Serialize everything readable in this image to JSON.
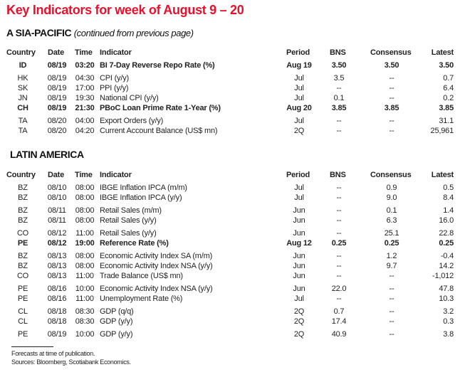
{
  "title": "Key Indicators for week of August 9 – 20",
  "columns": {
    "country": "Country",
    "date": "Date",
    "time": "Time",
    "indicator": "Indicator",
    "period": "Period",
    "bns": "BNS",
    "consensus": "Consensus",
    "latest": "Latest"
  },
  "asia": {
    "heading": "A SIA-PACIFIC",
    "subheading": "(continued from previous page)",
    "groups": [
      [
        {
          "country": "ID",
          "date": "08/19",
          "time": "03:20",
          "indicator": "BI 7-Day Reverse Repo Rate (%)",
          "period": "Aug 19",
          "bns": "3.50",
          "consensus": "3.50",
          "latest": "3.50",
          "bold": true
        }
      ],
      [
        {
          "country": "HK",
          "date": "08/19",
          "time": "04:30",
          "indicator": "CPI (y/y)",
          "period": "Jul",
          "bns": "3.5",
          "consensus": "--",
          "latest": "0.7"
        },
        {
          "country": "SK",
          "date": "08/19",
          "time": "17:00",
          "indicator": "PPI (y/y)",
          "period": "Jul",
          "bns": "--",
          "consensus": "--",
          "latest": "6.4"
        },
        {
          "country": "JN",
          "date": "08/19",
          "time": "19:30",
          "indicator": "National CPI (y/y)",
          "period": "Jul",
          "bns": "0.1",
          "consensus": "--",
          "latest": "0.2"
        },
        {
          "country": "CH",
          "date": "08/19",
          "time": "21:30",
          "indicator": "PBoC Loan Prime Rate 1-Year (%)",
          "period": "Aug 20",
          "bns": "3.85",
          "consensus": "3.85",
          "latest": "3.85",
          "bold": true
        }
      ],
      [
        {
          "country": "TA",
          "date": "08/20",
          "time": "04:00",
          "indicator": "Export Orders (y/y)",
          "period": "Jul",
          "bns": "--",
          "consensus": "--",
          "latest": "31.1"
        },
        {
          "country": "TA",
          "date": "08/20",
          "time": "04:20",
          "indicator": "Current Account Balance (US$ mn)",
          "period": "2Q",
          "bns": "--",
          "consensus": "--",
          "latest": "25,961"
        }
      ]
    ]
  },
  "latam": {
    "heading": "LATIN AMERICA",
    "groups": [
      [
        {
          "country": "BZ",
          "date": "08/10",
          "time": "08:00",
          "indicator": "IBGE Inflation IPCA (m/m)",
          "period": "Jul",
          "bns": "--",
          "consensus": "0.9",
          "latest": "0.5"
        },
        {
          "country": "BZ",
          "date": "08/10",
          "time": "08:00",
          "indicator": "IBGE Inflation IPCA (y/y)",
          "period": "Jul",
          "bns": "--",
          "consensus": "9.0",
          "latest": "8.4"
        }
      ],
      [
        {
          "country": "BZ",
          "date": "08/11",
          "time": "08:00",
          "indicator": "Retail Sales (m/m)",
          "period": "Jun",
          "bns": "--",
          "consensus": "0.1",
          "latest": "1.4"
        },
        {
          "country": "BZ",
          "date": "08/11",
          "time": "08:00",
          "indicator": "Retail Sales (y/y)",
          "period": "Jun",
          "bns": "--",
          "consensus": "6.3",
          "latest": "16.0"
        }
      ],
      [
        {
          "country": "CO",
          "date": "08/12",
          "time": "11:00",
          "indicator": "Retail Sales (y/y)",
          "period": "Jun",
          "bns": "--",
          "consensus": "25.1",
          "latest": "22.8"
        },
        {
          "country": "PE",
          "date": "08/12",
          "time": "19:00",
          "indicator": "Reference Rate (%)",
          "period": "Aug 12",
          "bns": "0.25",
          "consensus": "0.25",
          "latest": "0.25",
          "bold": true
        }
      ],
      [
        {
          "country": "BZ",
          "date": "08/13",
          "time": "08:00",
          "indicator": "Economic Activity Index SA (m/m)",
          "period": "Jun",
          "bns": "--",
          "consensus": "1.2",
          "latest": "-0.4"
        },
        {
          "country": "BZ",
          "date": "08/13",
          "time": "08:00",
          "indicator": "Economic Activity Index NSA (y/y)",
          "period": "Jun",
          "bns": "--",
          "consensus": "9.7",
          "latest": "14.2"
        },
        {
          "country": "CO",
          "date": "08/13",
          "time": "11:00",
          "indicator": "Trade Balance (US$ mn)",
          "period": "Jun",
          "bns": "--",
          "consensus": "--",
          "latest": "-1,012"
        }
      ],
      [
        {
          "country": "PE",
          "date": "08/16",
          "time": "10:00",
          "indicator": "Economic Activity Index NSA (y/y)",
          "period": "Jun",
          "bns": "22.0",
          "consensus": "--",
          "latest": "47.8"
        },
        {
          "country": "PE",
          "date": "08/16",
          "time": "11:00",
          "indicator": "Unemployment Rate (%)",
          "period": "Jul",
          "bns": "--",
          "consensus": "--",
          "latest": "10.3"
        }
      ],
      [
        {
          "country": "CL",
          "date": "08/18",
          "time": "08:30",
          "indicator": "GDP (q/q)",
          "period": "2Q",
          "bns": "0.7",
          "consensus": "--",
          "latest": "3.2"
        },
        {
          "country": "CL",
          "date": "08/18",
          "time": "08:30",
          "indicator": "GDP (y/y)",
          "period": "2Q",
          "bns": "17.4",
          "consensus": "--",
          "latest": "0.3"
        }
      ],
      [
        {
          "country": "PE",
          "date": "08/19",
          "time": "10:00",
          "indicator": "GDP (y/y)",
          "period": "2Q",
          "bns": "40.9",
          "consensus": "--",
          "latest": "3.8"
        }
      ]
    ]
  },
  "footnotes": [
    "Forecasts at time of publication.",
    "Sources: Bloomberg, Scotiabank Economics."
  ]
}
